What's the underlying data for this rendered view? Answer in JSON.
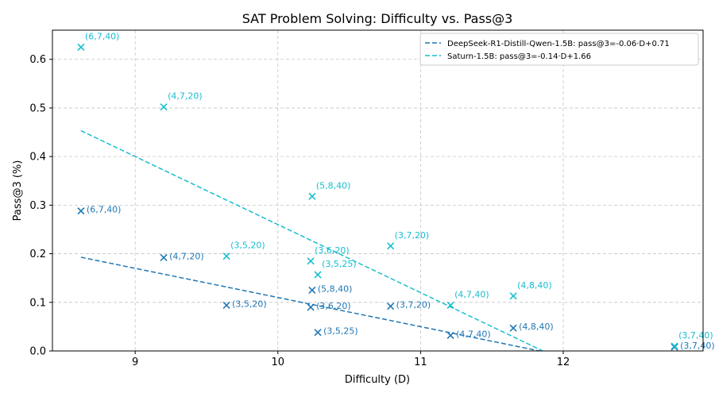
{
  "chart_data": {
    "type": "scatter",
    "title": "SAT Problem Solving: Difficulty vs. Pass@3",
    "xlabel": "Difficulty (D)",
    "ylabel": "Pass@3 (%)",
    "xlim": [
      8.42,
      12.98
    ],
    "ylim": [
      0.0,
      0.66
    ],
    "xticks": [
      "9",
      "10",
      "11",
      "12"
    ],
    "xtick_values": [
      9,
      10,
      11,
      12
    ],
    "yticks": [
      "0.0",
      "0.1",
      "0.2",
      "0.3",
      "0.4",
      "0.5",
      "0.6"
    ],
    "ytick_values": [
      0.0,
      0.1,
      0.2,
      0.3,
      0.4,
      0.5,
      0.6
    ],
    "grid": true,
    "legend_position": "top-right",
    "series": [
      {
        "name": "DeepSeek-R1-Distill-Qwen-1.5B",
        "color": "#1f77b4",
        "marker": "x",
        "trend_label": "DeepSeek-R1-Distill-Qwen-1.5B: pass@3=-0.06·D+0.71",
        "trend": {
          "slope": -0.06,
          "intercept": 0.71,
          "x_range": [
            8.62,
            12.25
          ]
        },
        "points": [
          {
            "x": 8.62,
            "y": 0.288,
            "label": "(6,7,40)"
          },
          {
            "x": 9.2,
            "y": 0.192,
            "label": "(4,7,20)"
          },
          {
            "x": 9.64,
            "y": 0.094,
            "label": "(3,5,20)"
          },
          {
            "x": 10.24,
            "y": 0.125,
            "label": "(5,8,40)"
          },
          {
            "x": 10.23,
            "y": 0.09,
            "label": "(3,6,20)"
          },
          {
            "x": 10.28,
            "y": 0.038,
            "label": "(3,5,25)"
          },
          {
            "x": 10.79,
            "y": 0.092,
            "label": "(3,7,20)"
          },
          {
            "x": 11.21,
            "y": 0.032,
            "label": "(4,7,40)"
          },
          {
            "x": 11.65,
            "y": 0.047,
            "label": "(4,8,40)"
          },
          {
            "x": 12.78,
            "y": 0.008,
            "label": "(3,7,40)"
          }
        ]
      },
      {
        "name": "Saturn-1.5B",
        "color": "#17becf",
        "marker": "x",
        "trend_label": "Saturn-1.5B: pass@3=-0.14·D+1.66",
        "trend": {
          "slope": -0.14,
          "intercept": 1.66,
          "x_range": [
            8.62,
            12.25
          ]
        },
        "points": [
          {
            "x": 8.62,
            "y": 0.625,
            "label": "(6,7,40)"
          },
          {
            "x": 9.2,
            "y": 0.502,
            "label": "(4,7,20)"
          },
          {
            "x": 9.64,
            "y": 0.195,
            "label": "(3,5,20)"
          },
          {
            "x": 10.24,
            "y": 0.318,
            "label": "(5,8,40)"
          },
          {
            "x": 10.23,
            "y": 0.185,
            "label": "(3,6,20)"
          },
          {
            "x": 10.28,
            "y": 0.157,
            "label": "(3,5,25)"
          },
          {
            "x": 10.79,
            "y": 0.216,
            "label": "(3,7,20)"
          },
          {
            "x": 11.21,
            "y": 0.094,
            "label": "(4,7,40)"
          },
          {
            "x": 11.65,
            "y": 0.113,
            "label": "(4,8,40)"
          },
          {
            "x": 12.78,
            "y": 0.01,
            "label": "(3,7,40)"
          }
        ]
      }
    ]
  }
}
